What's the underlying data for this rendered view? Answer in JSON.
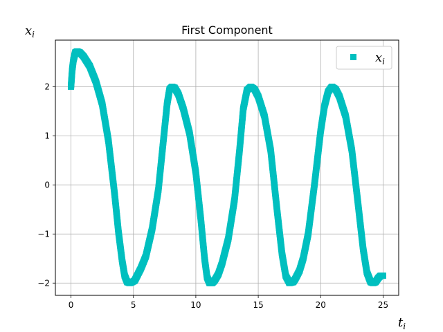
{
  "chart_data": {
    "type": "scatter",
    "title": "First Component",
    "xlabel": "t",
    "xlabel_sub": "i",
    "ylabel": "x",
    "ylabel_sub": "i",
    "xlim": [
      -1.25,
      26.25
    ],
    "ylim": [
      -2.25,
      2.95
    ],
    "xticks": [
      0,
      5,
      10,
      15,
      20,
      25
    ],
    "yticks": [
      -2,
      -1,
      0,
      1,
      2
    ],
    "grid": true,
    "legend_position": "top-right",
    "series": [
      {
        "name": "x",
        "name_sub": "i",
        "color": "#00bfbf",
        "marker": "square",
        "x": [
          0.0,
          0.1,
          0.2,
          0.35,
          0.5,
          0.7,
          1.0,
          1.5,
          2.0,
          2.5,
          3.0,
          3.5,
          3.8,
          4.1,
          4.3,
          4.5,
          4.7,
          4.9,
          5.1,
          5.3,
          5.6,
          6.0,
          6.5,
          7.0,
          7.4,
          7.7,
          7.9,
          8.1,
          8.3,
          8.6,
          9.0,
          9.5,
          10.0,
          10.4,
          10.7,
          10.9,
          11.1,
          11.3,
          11.5,
          11.8,
          12.1,
          12.6,
          13.1,
          13.5,
          13.8,
          14.1,
          14.4,
          14.7,
          15.0,
          15.5,
          16.0,
          16.5,
          16.9,
          17.2,
          17.5,
          17.8,
          18.0,
          18.3,
          18.6,
          19.0,
          19.5,
          20.0,
          20.3,
          20.6,
          20.9,
          21.2,
          21.5,
          22.0,
          22.5,
          23.0,
          23.4,
          23.7,
          24.0,
          24.2,
          24.4,
          24.6,
          24.8,
          25.0
        ],
        "y": [
          2.0,
          2.35,
          2.55,
          2.7,
          2.72,
          2.7,
          2.62,
          2.42,
          2.1,
          1.65,
          0.9,
          -0.2,
          -0.95,
          -1.55,
          -1.85,
          -1.98,
          -2.0,
          -1.98,
          -1.95,
          -1.85,
          -1.7,
          -1.45,
          -0.9,
          -0.1,
          0.9,
          1.65,
          1.95,
          2.0,
          1.98,
          1.85,
          1.55,
          1.05,
          0.25,
          -0.7,
          -1.5,
          -1.88,
          -2.0,
          -2.0,
          -1.95,
          -1.82,
          -1.6,
          -1.1,
          -0.3,
          0.7,
          1.55,
          1.93,
          2.0,
          1.95,
          1.8,
          1.4,
          0.7,
          -0.5,
          -1.4,
          -1.85,
          -2.0,
          -1.98,
          -1.9,
          -1.75,
          -1.5,
          -1.0,
          0.0,
          1.1,
          1.6,
          1.9,
          2.0,
          1.95,
          1.8,
          1.4,
          0.7,
          -0.4,
          -1.3,
          -1.78,
          -1.98,
          -2.0,
          -1.98,
          -1.9,
          -1.85,
          -1.85
        ]
      }
    ]
  }
}
